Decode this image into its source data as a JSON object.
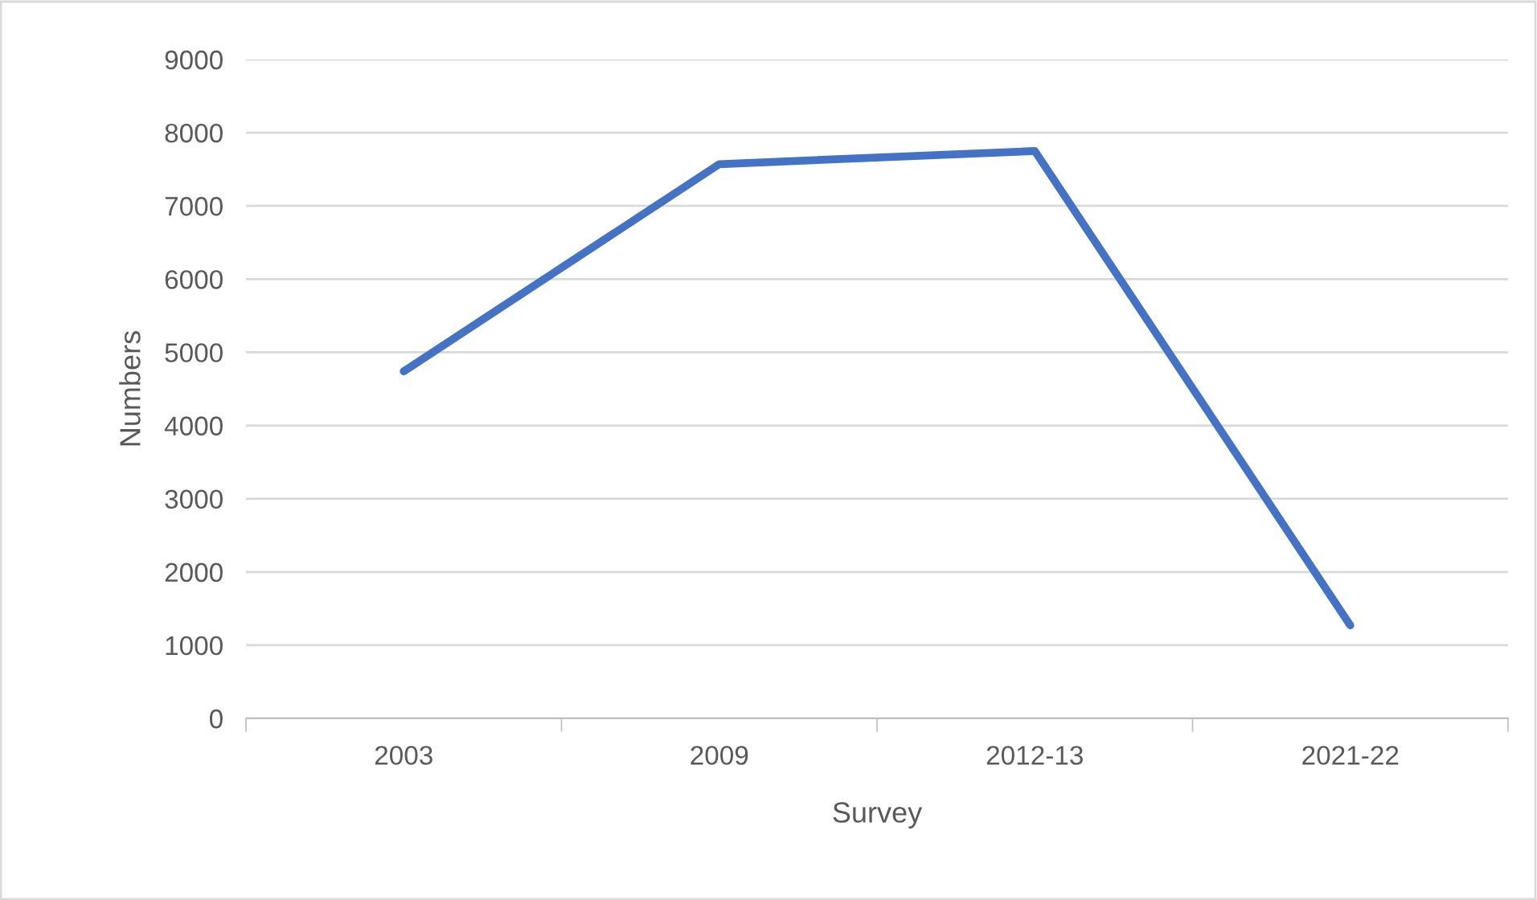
{
  "chart_data": {
    "type": "line",
    "xlabel": "Survey",
    "ylabel": "Numbers",
    "categories": [
      "2003",
      "2009",
      "2012-13",
      "2021-22"
    ],
    "series": [
      {
        "color": "#4472c4",
        "values": [
          4740,
          7570,
          7750,
          1270
        ]
      }
    ],
    "ylim": [
      0,
      9000
    ],
    "yticks": [
      0,
      1000,
      2000,
      3000,
      4000,
      5000,
      6000,
      7000,
      8000,
      9000
    ],
    "grid": "y",
    "marker": "none",
    "line_style": "solid"
  }
}
